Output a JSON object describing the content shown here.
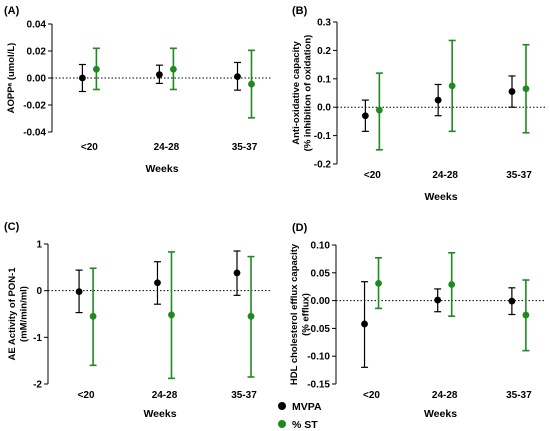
{
  "colors": {
    "MVPA": "#000000",
    "% ST": "#1f8a1f"
  },
  "legend": {
    "items": [
      "MVPA",
      "% ST"
    ]
  },
  "chart_data": [
    {
      "type": "scatter",
      "panel": "(A)",
      "xlabel": "Weeks",
      "ylabel": "AOPPᵃ (umol/L)",
      "categories": [
        "<20",
        "24-28",
        "35-37"
      ],
      "ylim": [
        -0.04,
        0.04
      ],
      "yticks": [
        "0.04",
        "0.02",
        "0.00",
        "-0.02",
        "-0.04"
      ],
      "ytick_values": [
        0.04,
        0.02,
        0.0,
        -0.02,
        -0.04
      ],
      "series": [
        {
          "name": "MVPA",
          "values": [
            0.0,
            0.0025,
            0.001
          ],
          "lower": [
            -0.01,
            -0.004,
            -0.009
          ],
          "upper": [
            0.01,
            0.0095,
            0.0115
          ]
        },
        {
          "name": "% ST",
          "values": [
            0.0065,
            0.0065,
            -0.0045
          ],
          "lower": [
            -0.0085,
            -0.0085,
            -0.0295
          ],
          "upper": [
            0.022,
            0.022,
            0.0205
          ]
        }
      ]
    },
    {
      "type": "scatter",
      "panel": "(B)",
      "xlabel": "Weeks",
      "ylabel": "Anti-oxidative capacity\n(% inhibition of oxidation)",
      "categories": [
        "<20",
        "24-28",
        "35-37"
      ],
      "ylim": [
        -0.2,
        0.3
      ],
      "yticks": [
        "0.3",
        "0.2",
        "0.1",
        "0.0",
        "-0.1",
        "-0.2"
      ],
      "ytick_values": [
        0.3,
        0.2,
        0.1,
        0.0,
        -0.1,
        -0.2
      ],
      "series": [
        {
          "name": "MVPA",
          "values": [
            -0.03,
            0.025,
            0.055
          ],
          "lower": [
            -0.085,
            -0.03,
            0.0
          ],
          "upper": [
            0.025,
            0.08,
            0.11
          ]
        },
        {
          "name": "% ST",
          "values": [
            -0.01,
            0.075,
            0.065
          ],
          "lower": [
            -0.15,
            -0.085,
            -0.09
          ],
          "upper": [
            0.12,
            0.235,
            0.22
          ]
        }
      ]
    },
    {
      "type": "scatter",
      "panel": "(C)",
      "xlabel": "Weeks",
      "ylabel": "AE Activity of PON-1\n(mM/min/ml)",
      "categories": [
        "<20",
        "24-28",
        "35-37"
      ],
      "ylim": [
        -2,
        1
      ],
      "yticks": [
        "1",
        "0",
        "-1",
        "-2"
      ],
      "ytick_values": [
        1,
        0,
        -1,
        -2
      ],
      "series": [
        {
          "name": "MVPA",
          "values": [
            -0.02,
            0.17,
            0.38
          ],
          "lower": [
            -0.47,
            -0.29,
            -0.1
          ],
          "upper": [
            0.44,
            0.62,
            0.85
          ]
        },
        {
          "name": "% ST",
          "values": [
            -0.55,
            -0.52,
            -0.55
          ],
          "lower": [
            -1.6,
            -1.88,
            -1.85
          ],
          "upper": [
            0.48,
            0.83,
            0.73
          ]
        }
      ]
    },
    {
      "type": "scatter",
      "panel": "(D)",
      "xlabel": "Weeks",
      "ylabel": "HDL cholesterol efflux capacity\n(% efflux)",
      "categories": [
        "<20",
        "24-28",
        "35-37"
      ],
      "ylim": [
        -0.15,
        0.1
      ],
      "yticks": [
        "0.10",
        "0.05",
        "0.00",
        "-0.05",
        "-0.10",
        "-0.15"
      ],
      "ytick_values": [
        0.1,
        0.05,
        0.0,
        -0.05,
        -0.1,
        -0.15
      ],
      "series": [
        {
          "name": "MVPA",
          "values": [
            -0.042,
            0.001,
            -0.001
          ],
          "lower": [
            -0.12,
            -0.02,
            -0.025
          ],
          "upper": [
            0.034,
            0.021,
            0.023
          ]
        },
        {
          "name": "% ST",
          "values": [
            0.031,
            0.029,
            -0.026
          ],
          "lower": [
            -0.014,
            -0.028,
            -0.09
          ],
          "upper": [
            0.077,
            0.086,
            0.037
          ]
        }
      ]
    }
  ]
}
